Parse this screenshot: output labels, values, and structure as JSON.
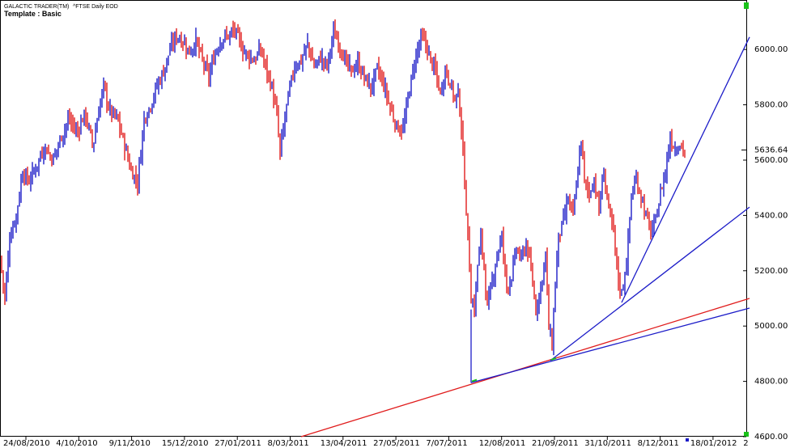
{
  "header": {
    "app_name": "GALACTIC TRADER(TM)",
    "symbol_title": "^FTSE Daily EOD",
    "template_label": "Template : Basic"
  },
  "colors": {
    "up_bar": "#1c1cc8",
    "down_bar": "#e01c1c",
    "blue_line": "#1c1cc8",
    "red_line": "#e01c1c",
    "frame": "#000000",
    "corner_marker": "#19c219"
  },
  "chart_data": {
    "type": "ohlc",
    "title": "^FTSE Daily EOD",
    "ylim": [
      4600,
      6100
    ],
    "y_ticks": [
      4600,
      4800,
      5000,
      5200,
      5400,
      5600,
      5800,
      6000
    ],
    "y_tick_labels": [
      "4600.00",
      "4800.00",
      "5000.00",
      "5200.00",
      "5400.00",
      "5600.00",
      "5800.00",
      "6000.00"
    ],
    "last_price": 5636.64,
    "last_price_label": "5636.64",
    "x_tick_labels": [
      "24/08/2010",
      "4/10/2010",
      "9/11/2010",
      "15/12/2010",
      "27/01/2011",
      "8/03/2011",
      "13/04/2011",
      "27/05/2011",
      "7/07/2011",
      "12/08/2011",
      "21/09/2011",
      "31/10/2011",
      "8/12/2011",
      "18/01/2012",
      "2"
    ],
    "price_path": [
      [
        0,
        5250
      ],
      [
        6,
        5100
      ],
      [
        12,
        5320
      ],
      [
        20,
        5400
      ],
      [
        28,
        5560
      ],
      [
        35,
        5520
      ],
      [
        45,
        5580
      ],
      [
        55,
        5650
      ],
      [
        65,
        5600
      ],
      [
        75,
        5680
      ],
      [
        85,
        5750
      ],
      [
        95,
        5700
      ],
      [
        105,
        5770
      ],
      [
        115,
        5650
      ],
      [
        122,
        5780
      ],
      [
        128,
        5870
      ],
      [
        135,
        5780
      ],
      [
        145,
        5750
      ],
      [
        155,
        5640
      ],
      [
        162,
        5560
      ],
      [
        170,
        5520
      ],
      [
        178,
        5750
      ],
      [
        186,
        5800
      ],
      [
        194,
        5870
      ],
      [
        202,
        5920
      ],
      [
        210,
        6000
      ],
      [
        218,
        6050
      ],
      [
        226,
        6030
      ],
      [
        234,
        5990
      ],
      [
        242,
        6030
      ],
      [
        250,
        5960
      ],
      [
        258,
        5900
      ],
      [
        266,
        5990
      ],
      [
        274,
        6040
      ],
      [
        282,
        6050
      ],
      [
        290,
        6070
      ],
      [
        300,
        6000
      ],
      [
        306,
        5980
      ],
      [
        314,
        5960
      ],
      [
        322,
        6000
      ],
      [
        330,
        5920
      ],
      [
        336,
        5860
      ],
      [
        342,
        5760
      ],
      [
        346,
        5620
      ],
      [
        352,
        5760
      ],
      [
        358,
        5860
      ],
      [
        364,
        5940
      ],
      [
        372,
        5960
      ],
      [
        380,
        6020
      ],
      [
        388,
        5940
      ],
      [
        396,
        5970
      ],
      [
        404,
        5940
      ],
      [
        412,
        6060
      ],
      [
        418,
        6030
      ],
      [
        426,
        5960
      ],
      [
        434,
        5920
      ],
      [
        442,
        5950
      ],
      [
        450,
        5900
      ],
      [
        458,
        5860
      ],
      [
        466,
        5930
      ],
      [
        474,
        5870
      ],
      [
        482,
        5790
      ],
      [
        490,
        5720
      ],
      [
        498,
        5710
      ],
      [
        506,
        5860
      ],
      [
        514,
        5980
      ],
      [
        520,
        6040
      ],
      [
        526,
        6020
      ],
      [
        532,
        5960
      ],
      [
        538,
        5920
      ],
      [
        544,
        5840
      ],
      [
        550,
        5930
      ],
      [
        556,
        5880
      ],
      [
        562,
        5820
      ],
      [
        566,
        5840
      ],
      [
        570,
        5720
      ],
      [
        574,
        5520
      ],
      [
        578,
        5320
      ],
      [
        582,
        5100
      ],
      [
        586,
        5060
      ],
      [
        590,
        5220
      ],
      [
        594,
        5320
      ],
      [
        598,
        5220
      ],
      [
        602,
        5060
      ],
      [
        608,
        5160
      ],
      [
        614,
        5260
      ],
      [
        620,
        5320
      ],
      [
        626,
        5140
      ],
      [
        632,
        5180
      ],
      [
        638,
        5280
      ],
      [
        644,
        5240
      ],
      [
        650,
        5300
      ],
      [
        656,
        5200
      ],
      [
        662,
        5060
      ],
      [
        668,
        5140
      ],
      [
        674,
        5260
      ],
      [
        678,
        4990
      ],
      [
        682,
        4930
      ],
      [
        686,
        5160
      ],
      [
        690,
        5320
      ],
      [
        696,
        5380
      ],
      [
        702,
        5460
      ],
      [
        708,
        5400
      ],
      [
        714,
        5560
      ],
      [
        718,
        5680
      ],
      [
        722,
        5520
      ],
      [
        728,
        5480
      ],
      [
        734,
        5530
      ],
      [
        740,
        5420
      ],
      [
        746,
        5560
      ],
      [
        752,
        5420
      ],
      [
        758,
        5340
      ],
      [
        764,
        5160
      ],
      [
        768,
        5120
      ],
      [
        774,
        5230
      ],
      [
        780,
        5470
      ],
      [
        786,
        5530
      ],
      [
        792,
        5470
      ],
      [
        798,
        5400
      ],
      [
        804,
        5340
      ],
      [
        810,
        5380
      ],
      [
        816,
        5480
      ],
      [
        822,
        5560
      ],
      [
        828,
        5680
      ],
      [
        834,
        5640
      ],
      [
        840,
        5660
      ],
      [
        846,
        5630
      ]
    ],
    "trend_lines": [
      {
        "color": "red",
        "from": [
          372,
          4600
        ],
        "to": [
          926,
          5100
        ]
      },
      {
        "color": "blue",
        "from": [
          582,
          4795
        ],
        "to": [
          926,
          5065
        ]
      },
      {
        "color": "blue",
        "from": [
          680,
          4875
        ],
        "to": [
          926,
          5430
        ]
      },
      {
        "color": "blue",
        "from": [
          768,
          5085
        ],
        "to": [
          926,
          6045
        ]
      },
      {
        "color": "blue",
        "from": [
          582,
          4795
        ],
        "to": [
          582,
          5060
        ]
      }
    ]
  }
}
